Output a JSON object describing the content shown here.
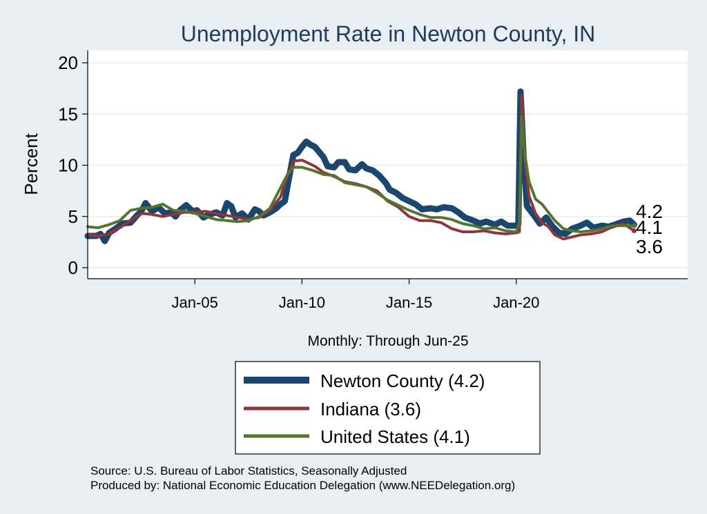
{
  "chart_data": {
    "type": "line",
    "title": "Unemployment Rate in Newton  County, IN",
    "ylabel": "Percent",
    "xlabel": "Monthly: Through Jun-25",
    "ylim": [
      0,
      20
    ],
    "yticks": [
      0,
      5,
      10,
      15,
      20
    ],
    "xlim": [
      2000.0,
      2028.0
    ],
    "xticks": [
      {
        "value": 2005.0,
        "label": "Jan-05"
      },
      {
        "value": 2010.0,
        "label": "Jan-10"
      },
      {
        "value": 2015.0,
        "label": "Jan-15"
      },
      {
        "value": 2020.0,
        "label": "Jan-20"
      }
    ],
    "grid": true,
    "legend_position": "bottom",
    "end_labels": [
      "4.2",
      "4.1",
      "3.6"
    ],
    "source_lines": [
      "Source: U.S. Bureau of Labor Statistics, Seasonally Adjusted",
      "Produced by: National Economic Education Delegation (www.NEEDelegation.org)"
    ],
    "series": [
      {
        "name": "Newton  County (4.2)",
        "color": "#1a476f",
        "points": [
          [
            2000.0,
            3.1
          ],
          [
            2000.4,
            3.1
          ],
          [
            2000.6,
            3.3
          ],
          [
            2000.8,
            2.6
          ],
          [
            2001.0,
            3.4
          ],
          [
            2001.3,
            3.8
          ],
          [
            2001.6,
            4.3
          ],
          [
            2002.0,
            4.4
          ],
          [
            2002.3,
            5.1
          ],
          [
            2002.5,
            5.5
          ],
          [
            2002.7,
            6.3
          ],
          [
            2003.0,
            5.5
          ],
          [
            2003.3,
            5.9
          ],
          [
            2003.6,
            5.3
          ],
          [
            2003.9,
            5.4
          ],
          [
            2004.1,
            5.0
          ],
          [
            2004.3,
            5.6
          ],
          [
            2004.6,
            6.1
          ],
          [
            2004.9,
            5.5
          ],
          [
            2005.1,
            5.6
          ],
          [
            2005.4,
            4.9
          ],
          [
            2005.7,
            5.2
          ],
          [
            2006.0,
            5.4
          ],
          [
            2006.3,
            5.1
          ],
          [
            2006.5,
            6.3
          ],
          [
            2006.7,
            6.0
          ],
          [
            2006.9,
            4.9
          ],
          [
            2007.2,
            5.3
          ],
          [
            2007.5,
            4.7
          ],
          [
            2007.8,
            5.7
          ],
          [
            2008.0,
            5.5
          ],
          [
            2008.2,
            5.1
          ],
          [
            2008.5,
            5.4
          ],
          [
            2008.8,
            5.8
          ],
          [
            2009.0,
            6.2
          ],
          [
            2009.2,
            6.5
          ],
          [
            2009.4,
            8.8
          ],
          [
            2009.6,
            11.0
          ],
          [
            2009.8,
            11.2
          ],
          [
            2010.0,
            11.8
          ],
          [
            2010.2,
            12.3
          ],
          [
            2010.4,
            12.0
          ],
          [
            2010.6,
            11.8
          ],
          [
            2010.8,
            11.3
          ],
          [
            2011.0,
            10.8
          ],
          [
            2011.2,
            9.9
          ],
          [
            2011.5,
            9.8
          ],
          [
            2011.7,
            10.3
          ],
          [
            2012.0,
            10.3
          ],
          [
            2012.2,
            9.6
          ],
          [
            2012.5,
            9.5
          ],
          [
            2012.8,
            10.1
          ],
          [
            2013.0,
            9.7
          ],
          [
            2013.3,
            9.5
          ],
          [
            2013.6,
            9.0
          ],
          [
            2013.9,
            8.3
          ],
          [
            2014.1,
            7.6
          ],
          [
            2014.4,
            7.3
          ],
          [
            2014.7,
            6.8
          ],
          [
            2015.0,
            6.5
          ],
          [
            2015.3,
            6.2
          ],
          [
            2015.6,
            5.7
          ],
          [
            2016.0,
            5.8
          ],
          [
            2016.3,
            5.7
          ],
          [
            2016.6,
            5.9
          ],
          [
            2017.0,
            5.8
          ],
          [
            2017.3,
            5.4
          ],
          [
            2017.6,
            4.9
          ],
          [
            2018.0,
            4.6
          ],
          [
            2018.3,
            4.3
          ],
          [
            2018.6,
            4.5
          ],
          [
            2019.0,
            4.2
          ],
          [
            2019.3,
            4.5
          ],
          [
            2019.6,
            4.1
          ],
          [
            2020.0,
            4.1
          ],
          [
            2020.1,
            4.3
          ],
          [
            2020.2,
            17.2
          ],
          [
            2020.35,
            10.5
          ],
          [
            2020.5,
            6.0
          ],
          [
            2020.8,
            5.2
          ],
          [
            2021.1,
            4.3
          ],
          [
            2021.4,
            4.9
          ],
          [
            2021.7,
            4.0
          ],
          [
            2022.0,
            3.4
          ],
          [
            2022.3,
            3.3
          ],
          [
            2022.6,
            3.8
          ],
          [
            2023.0,
            4.1
          ],
          [
            2023.3,
            4.4
          ],
          [
            2023.6,
            3.9
          ],
          [
            2024.0,
            4.1
          ],
          [
            2024.3,
            4.0
          ],
          [
            2024.6,
            4.2
          ],
          [
            2025.0,
            4.5
          ],
          [
            2025.3,
            4.6
          ],
          [
            2025.5,
            4.2
          ]
        ]
      },
      {
        "name": "Indiana (3.6)",
        "color": "#90353b",
        "points": [
          [
            2000.0,
            3.2
          ],
          [
            2000.5,
            3.1
          ],
          [
            2001.0,
            3.3
          ],
          [
            2001.5,
            3.9
          ],
          [
            2002.0,
            4.6
          ],
          [
            2002.5,
            5.3
          ],
          [
            2003.0,
            5.2
          ],
          [
            2003.5,
            5.0
          ],
          [
            2004.0,
            5.2
          ],
          [
            2004.5,
            5.4
          ],
          [
            2005.0,
            5.4
          ],
          [
            2005.5,
            5.5
          ],
          [
            2006.0,
            5.3
          ],
          [
            2006.5,
            5.1
          ],
          [
            2007.0,
            4.9
          ],
          [
            2007.5,
            4.7
          ],
          [
            2008.0,
            4.9
          ],
          [
            2008.5,
            5.6
          ],
          [
            2009.0,
            6.9
          ],
          [
            2009.3,
            8.9
          ],
          [
            2009.6,
            10.4
          ],
          [
            2010.0,
            10.5
          ],
          [
            2010.3,
            10.2
          ],
          [
            2010.6,
            9.9
          ],
          [
            2011.0,
            9.3
          ],
          [
            2011.5,
            8.9
          ],
          [
            2012.0,
            8.4
          ],
          [
            2012.5,
            8.2
          ],
          [
            2013.0,
            7.9
          ],
          [
            2013.5,
            7.5
          ],
          [
            2014.0,
            6.5
          ],
          [
            2014.5,
            5.9
          ],
          [
            2015.0,
            5.0
          ],
          [
            2015.5,
            4.6
          ],
          [
            2016.0,
            4.6
          ],
          [
            2016.5,
            4.4
          ],
          [
            2017.0,
            3.8
          ],
          [
            2017.5,
            3.5
          ],
          [
            2018.0,
            3.5
          ],
          [
            2018.5,
            3.6
          ],
          [
            2019.0,
            3.4
          ],
          [
            2019.5,
            3.3
          ],
          [
            2020.0,
            3.4
          ],
          [
            2020.15,
            3.5
          ],
          [
            2020.25,
            16.8
          ],
          [
            2020.4,
            10.6
          ],
          [
            2020.6,
            7.0
          ],
          [
            2020.9,
            5.3
          ],
          [
            2021.2,
            4.4
          ],
          [
            2021.5,
            4.0
          ],
          [
            2021.8,
            3.2
          ],
          [
            2022.2,
            2.8
          ],
          [
            2022.6,
            3.0
          ],
          [
            2023.0,
            3.2
          ],
          [
            2023.5,
            3.3
          ],
          [
            2024.0,
            3.5
          ],
          [
            2024.5,
            4.0
          ],
          [
            2025.0,
            4.3
          ],
          [
            2025.5,
            3.6
          ]
        ]
      },
      {
        "name": "United States (4.1)",
        "color": "#55752f",
        "points": [
          [
            2000.0,
            4.0
          ],
          [
            2000.5,
            3.9
          ],
          [
            2001.0,
            4.2
          ],
          [
            2001.5,
            4.6
          ],
          [
            2002.0,
            5.6
          ],
          [
            2002.5,
            5.8
          ],
          [
            2003.0,
            5.9
          ],
          [
            2003.5,
            6.2
          ],
          [
            2004.0,
            5.6
          ],
          [
            2004.5,
            5.5
          ],
          [
            2005.0,
            5.3
          ],
          [
            2005.5,
            5.0
          ],
          [
            2006.0,
            4.7
          ],
          [
            2006.5,
            4.6
          ],
          [
            2007.0,
            4.5
          ],
          [
            2007.5,
            4.6
          ],
          [
            2008.0,
            5.0
          ],
          [
            2008.5,
            5.8
          ],
          [
            2009.0,
            7.8
          ],
          [
            2009.3,
            9.0
          ],
          [
            2009.6,
            9.8
          ],
          [
            2010.0,
            9.8
          ],
          [
            2010.5,
            9.5
          ],
          [
            2011.0,
            9.1
          ],
          [
            2011.5,
            9.0
          ],
          [
            2012.0,
            8.3
          ],
          [
            2012.5,
            8.1
          ],
          [
            2013.0,
            7.9
          ],
          [
            2013.5,
            7.3
          ],
          [
            2014.0,
            6.6
          ],
          [
            2014.5,
            6.1
          ],
          [
            2015.0,
            5.6
          ],
          [
            2015.5,
            5.2
          ],
          [
            2016.0,
            4.9
          ],
          [
            2016.5,
            4.9
          ],
          [
            2017.0,
            4.7
          ],
          [
            2017.5,
            4.3
          ],
          [
            2018.0,
            4.1
          ],
          [
            2018.5,
            3.8
          ],
          [
            2019.0,
            3.9
          ],
          [
            2019.5,
            3.6
          ],
          [
            2020.0,
            3.5
          ],
          [
            2020.15,
            4.4
          ],
          [
            2020.25,
            14.8
          ],
          [
            2020.4,
            11.1
          ],
          [
            2020.6,
            8.4
          ],
          [
            2020.9,
            6.7
          ],
          [
            2021.2,
            6.2
          ],
          [
            2021.5,
            5.4
          ],
          [
            2021.8,
            4.6
          ],
          [
            2022.2,
            3.8
          ],
          [
            2022.6,
            3.6
          ],
          [
            2023.0,
            3.5
          ],
          [
            2023.5,
            3.6
          ],
          [
            2024.0,
            3.8
          ],
          [
            2024.5,
            4.1
          ],
          [
            2025.0,
            4.1
          ],
          [
            2025.5,
            4.1
          ]
        ]
      }
    ]
  }
}
